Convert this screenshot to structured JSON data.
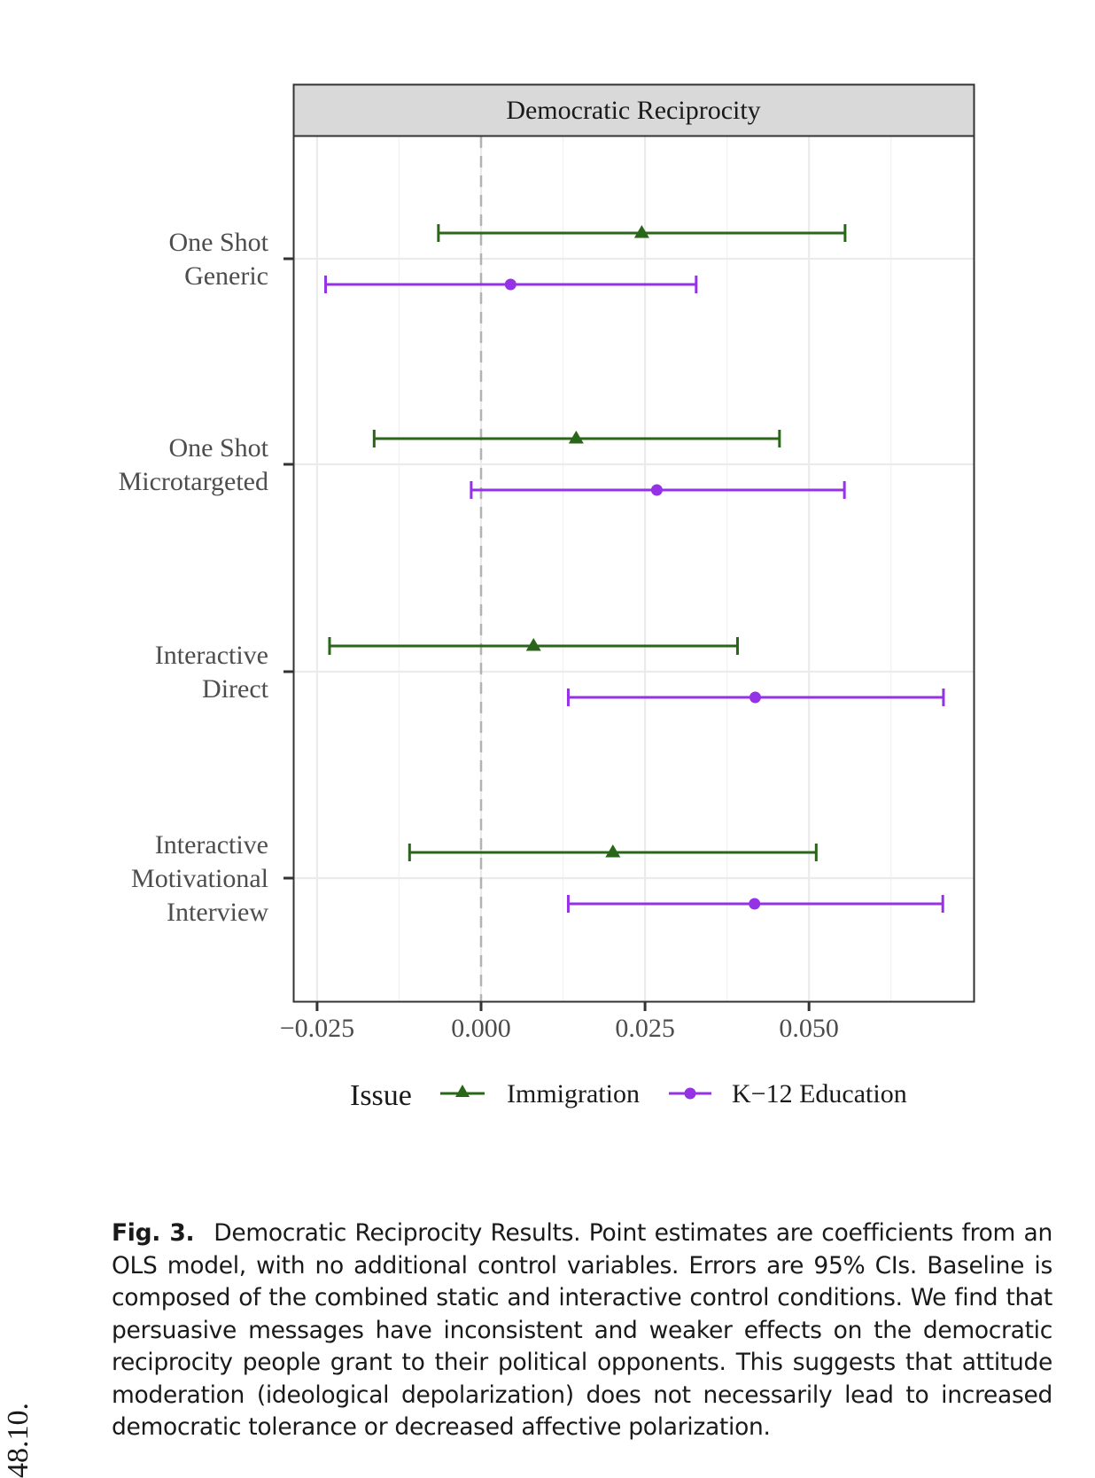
{
  "chart_data": {
    "type": "errorbar",
    "title": "Democratic Reciprocity",
    "xlabel": "",
    "ylabel": "",
    "xlim": [
      -0.0285,
      0.0751
    ],
    "x_ticks": [
      -0.025,
      0.0,
      0.025,
      0.05
    ],
    "x_tick_labels": [
      "−0.025",
      "0.000",
      "0.025",
      "0.050"
    ],
    "reference_line": 0,
    "grid": true,
    "categories": [
      [
        "One Shot",
        "Generic"
      ],
      [
        "One Shot",
        "Microtargeted"
      ],
      [
        "Interactive",
        "Direct"
      ],
      [
        "Interactive",
        "Motivational",
        "Interview"
      ]
    ],
    "legend": {
      "title": "Issue",
      "position": "bottom"
    },
    "series": [
      {
        "name": "Immigration",
        "color": "#2a6619",
        "marker": "triangle",
        "estimates": [
          0.0245,
          0.0145,
          0.008,
          0.0201
        ],
        "lower": [
          -0.0065,
          -0.0163,
          -0.0231,
          -0.0109
        ],
        "upper": [
          0.0555,
          0.0455,
          0.0391,
          0.0511
        ]
      },
      {
        "name": "K−12 Education",
        "color": "#9632e6",
        "marker": "circle",
        "estimates": [
          0.0045,
          0.0268,
          0.0418,
          0.0417
        ],
        "lower": [
          -0.0237,
          -0.0015,
          0.0133,
          0.0133
        ],
        "upper": [
          0.0328,
          0.0554,
          0.0705,
          0.0704
        ]
      }
    ]
  },
  "caption": {
    "label": "Fig. 3.",
    "text": "Democratic Reciprocity Results. Point estimates are coefficients from an OLS model, with no additional control variables. Errors are 95% CIs. Baseline is composed of the combined static and interactive control conditions. We find that persuasive messages have inconsistent and weaker effects on the democratic reciprocity people grant to their political opponents. This suggests that attitude moderation (ideological depolarization) does not necessarily lead to increased democratic tolerance or decreased affective polarization."
  },
  "margin_note": "48.10."
}
